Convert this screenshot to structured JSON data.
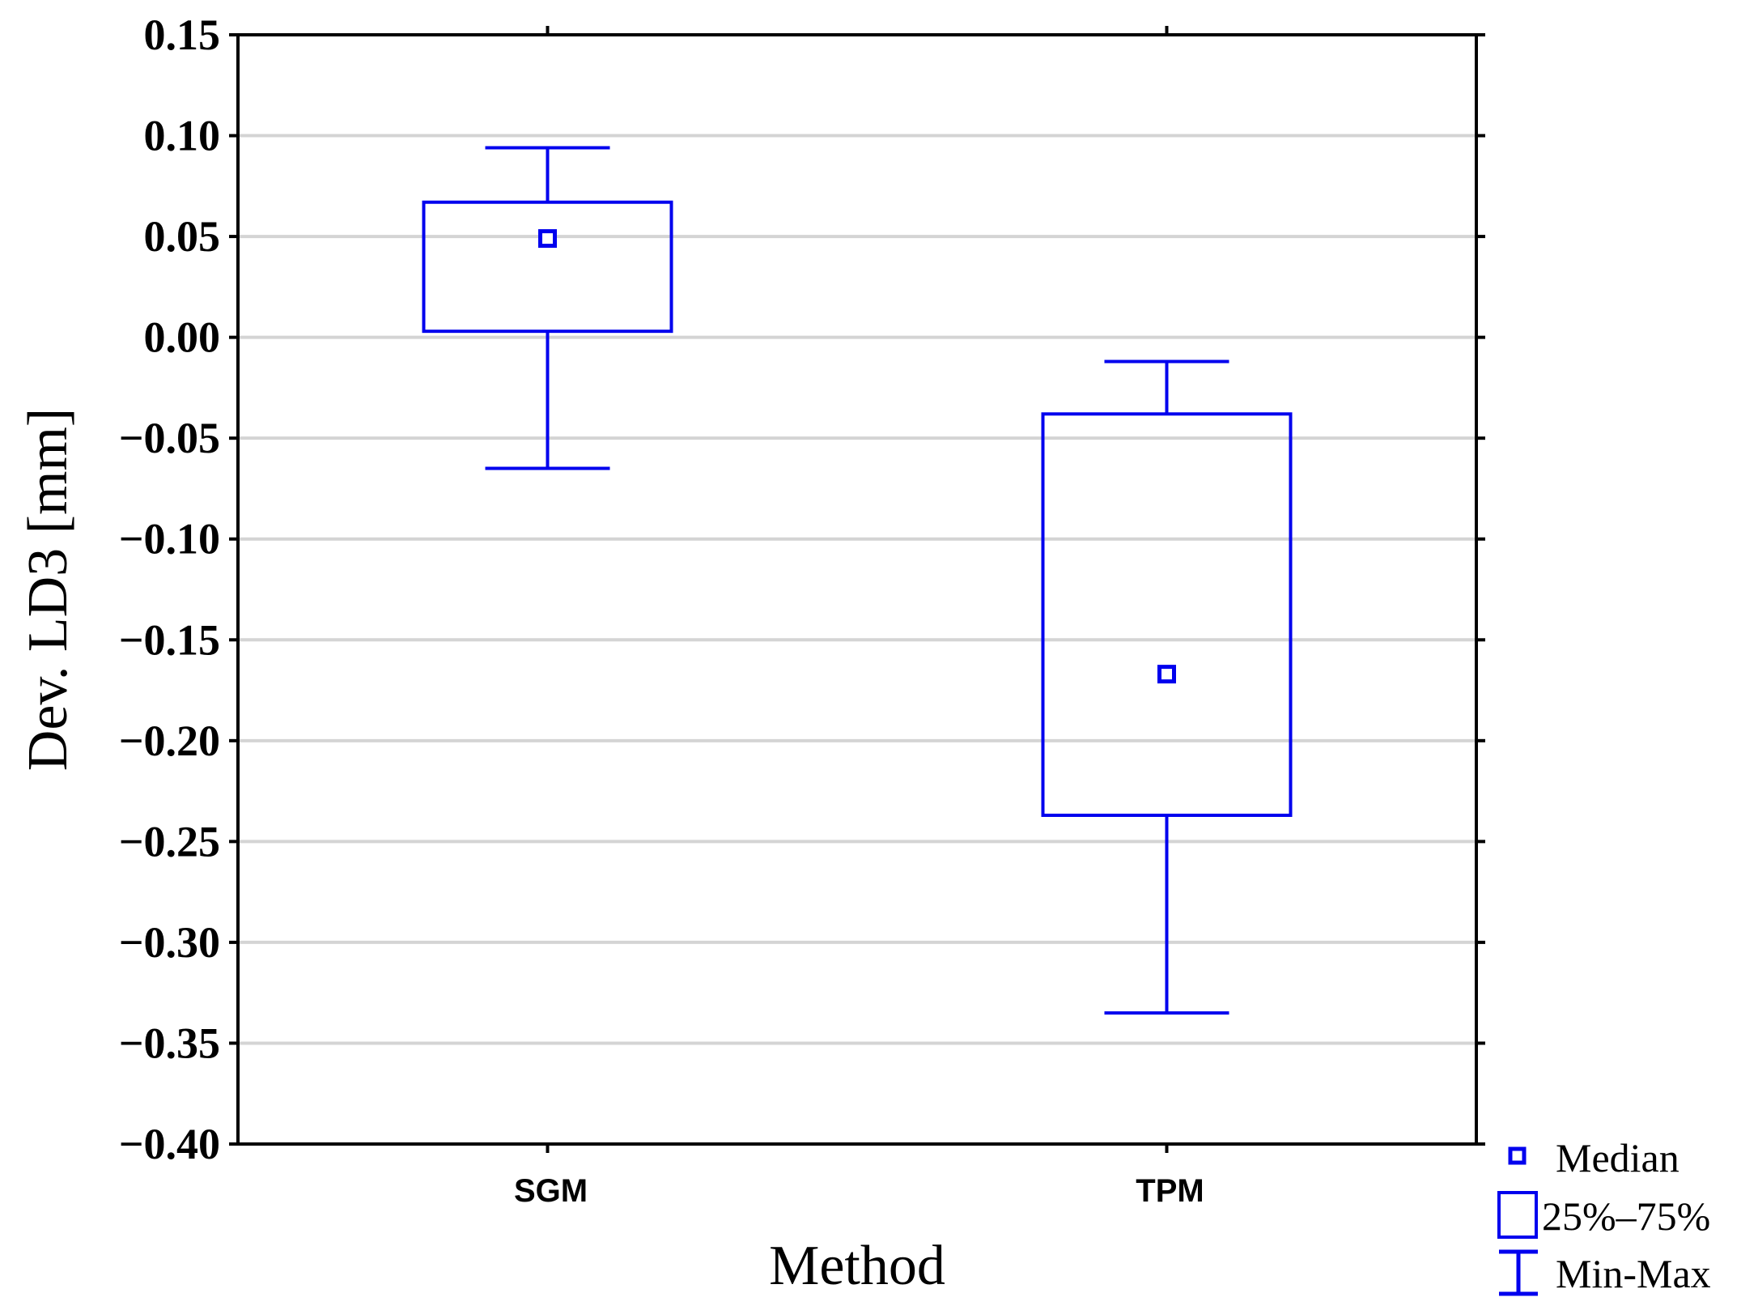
{
  "chart_data": {
    "type": "boxplot",
    "title": "",
    "xlabel": "Method",
    "ylabel": "Dev. LD3 [mm]",
    "categories": [
      "SGM",
      "TPM"
    ],
    "boxes": [
      {
        "category": "SGM",
        "min": -0.065,
        "q1": 0.003,
        "median": 0.049,
        "q3": 0.067,
        "max": 0.094
      },
      {
        "category": "TPM",
        "min": -0.335,
        "q1": -0.237,
        "median": -0.167,
        "q3": -0.038,
        "max": -0.012
      }
    ],
    "ylim": [
      -0.4,
      0.15
    ],
    "yticks": [
      "0.15",
      "0.10",
      "0.05",
      "0.00",
      "−0.05",
      "−0.10",
      "−0.15",
      "−0.20",
      "−0.25",
      "−0.30",
      "−0.35",
      "−0.40"
    ],
    "ytick_values": [
      0.15,
      0.1,
      0.05,
      0.0,
      -0.05,
      -0.1,
      -0.15,
      -0.2,
      -0.25,
      -0.3,
      -0.35,
      -0.4
    ],
    "grid": true,
    "legend_placement": "bottom-right outside",
    "legend": [
      {
        "symbol": "median-square",
        "label": "Median"
      },
      {
        "symbol": "box",
        "label": "25%–75%"
      },
      {
        "symbol": "whisker",
        "label": "Min-Max"
      }
    ],
    "colors": {
      "series": "#0000ee",
      "grid": "#d4d4d4",
      "axis": "#000000"
    }
  }
}
